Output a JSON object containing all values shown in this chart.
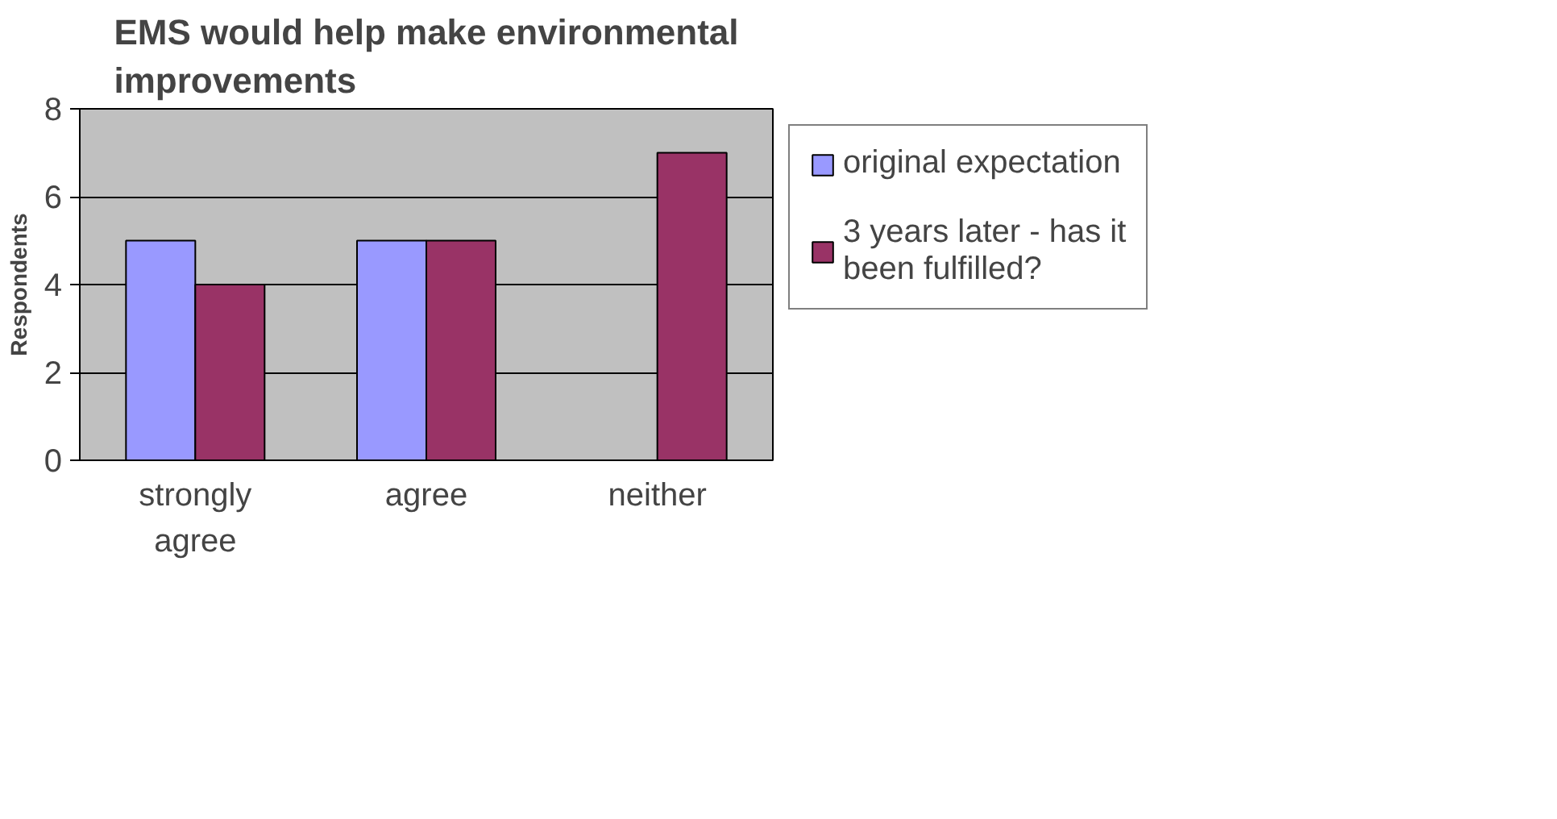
{
  "chart_data": {
    "type": "bar",
    "title": "EMS would help make environmental improvements",
    "ylabel": "Respondents",
    "categories": [
      "strongly agree",
      "agree",
      "neither"
    ],
    "series": [
      {
        "name": "original expectation",
        "color": "#9999ff",
        "values": [
          5,
          5,
          null
        ]
      },
      {
        "name": "3 years later - has it been fulfilled?",
        "color": "#993366",
        "values": [
          4,
          5,
          7
        ]
      }
    ],
    "ylim": [
      0,
      8
    ],
    "yticks": [
      0,
      2,
      4,
      6,
      8
    ],
    "grid": "y",
    "legend": "right"
  }
}
